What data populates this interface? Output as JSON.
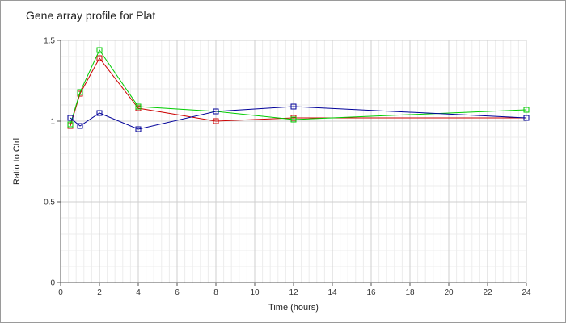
{
  "chart_data": {
    "type": "line",
    "title": "Gene array profile for Plat",
    "xlabel": "Time (hours)",
    "ylabel": "Ratio to Ctrl",
    "xlim": [
      0,
      24
    ],
    "ylim": [
      0,
      1.5
    ],
    "x_ticks": [
      "0",
      "2",
      "4",
      "6",
      "8",
      "10",
      "12",
      "14",
      "16",
      "18",
      "20",
      "22",
      "24"
    ],
    "y_ticks": [
      "0",
      "0.5",
      "1",
      "1.5"
    ],
    "grid": true,
    "x": [
      0.5,
      1,
      2,
      4,
      8,
      12,
      24
    ],
    "series": [
      {
        "color": "#cc0000",
        "marker": "square",
        "values": [
          0.97,
          1.17,
          1.39,
          1.08,
          1.0,
          1.02,
          1.02
        ]
      },
      {
        "color": "#00cc00",
        "marker": "square",
        "values": [
          0.98,
          1.18,
          1.44,
          1.09,
          1.06,
          1.01,
          1.07
        ]
      },
      {
        "color": "#000099",
        "marker": "square",
        "values": [
          1.02,
          0.97,
          1.05,
          0.95,
          1.06,
          1.09,
          1.02
        ]
      }
    ]
  }
}
